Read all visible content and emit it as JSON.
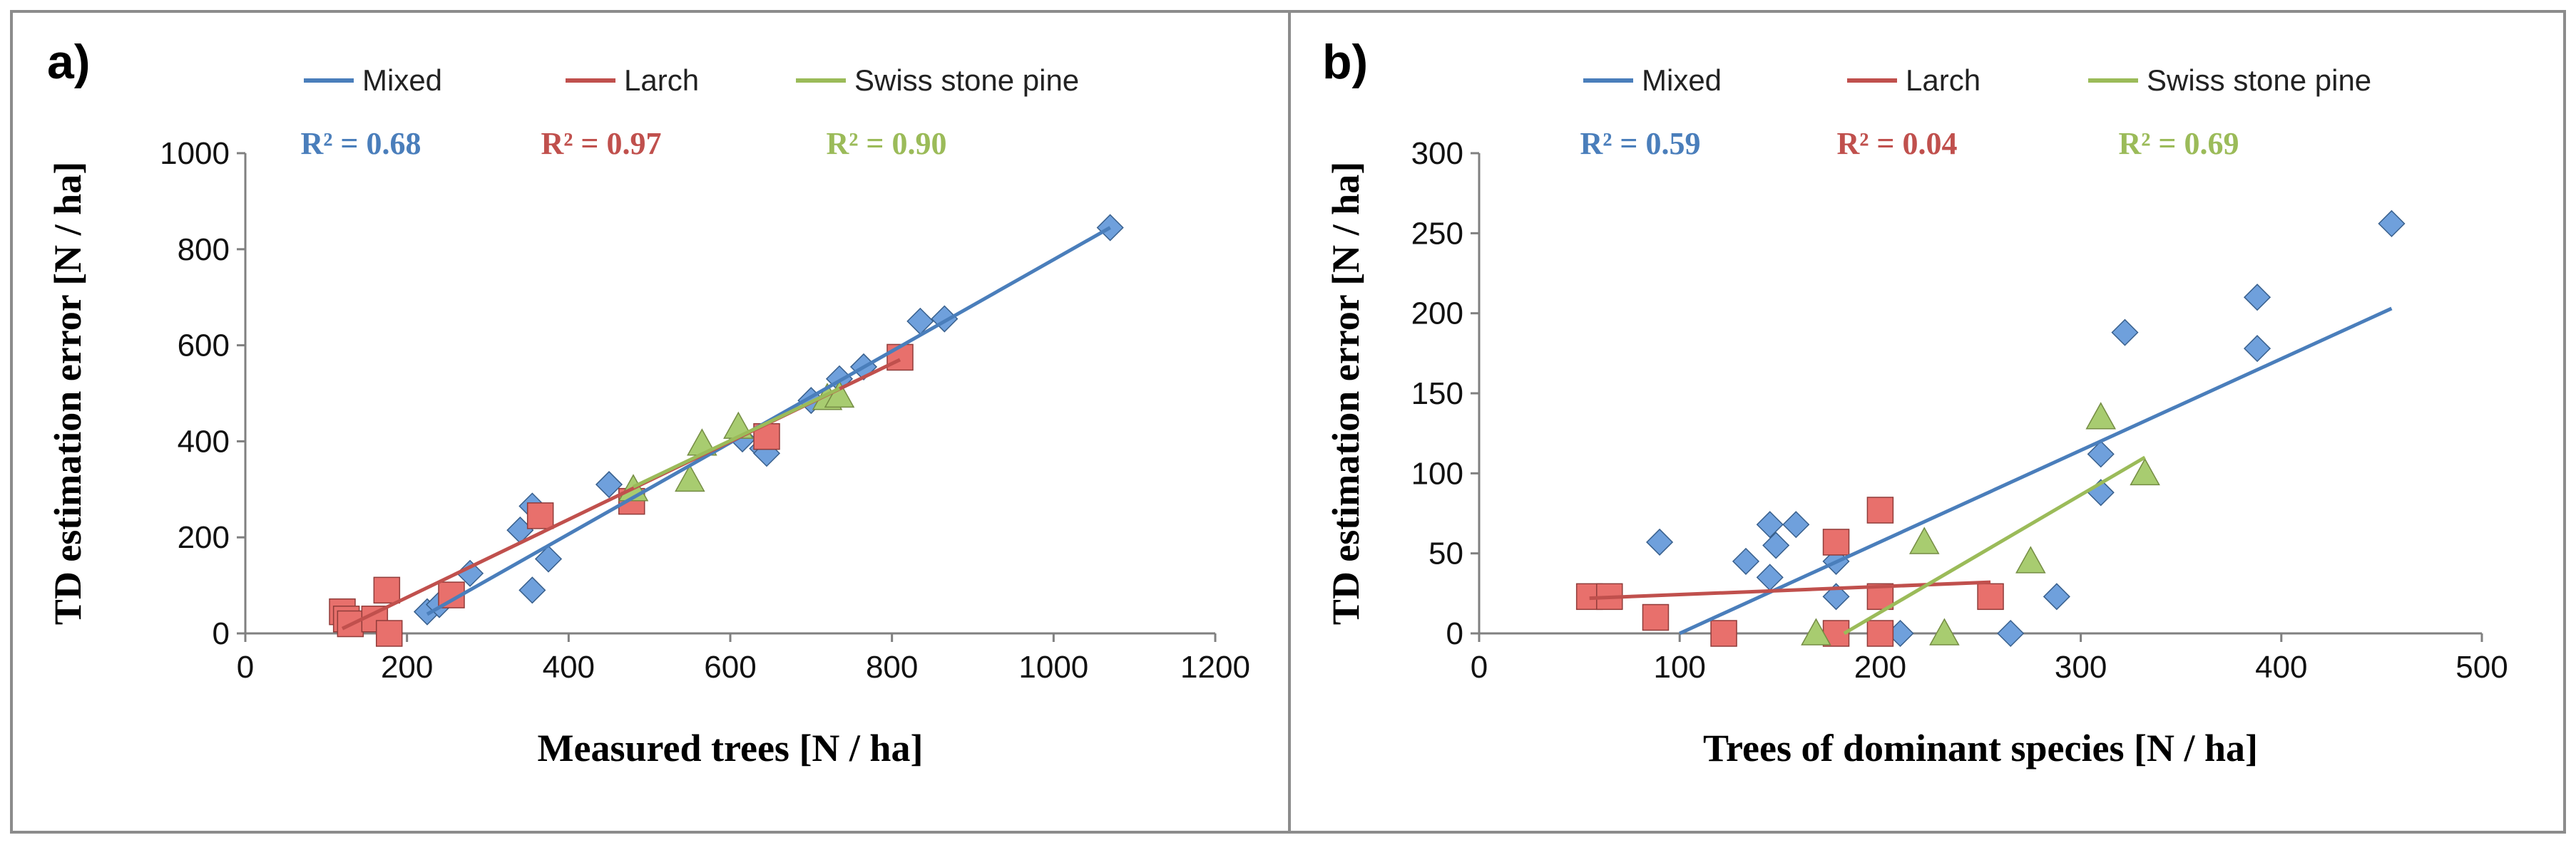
{
  "chart_data": [
    {
      "type": "scatter",
      "panel_label": "a)",
      "xlabel": "Measured trees [N / ha]",
      "ylabel": "TD estimation error [N / ha]",
      "xlim": [
        0,
        1200
      ],
      "ylim": [
        0,
        1000
      ],
      "xticks": [
        "0",
        "200",
        "400",
        "600",
        "800",
        "1000",
        "1200"
      ],
      "yticks": [
        "0",
        "200",
        "400",
        "600",
        "800",
        "1000"
      ],
      "grid": false,
      "legend_position": "top",
      "series": [
        {
          "name": "Mixed",
          "color": "#4A7EBB",
          "marker": "diamond",
          "r2_label": "R² = 0.68",
          "points": [
            [
              225,
              45
            ],
            [
              240,
              60
            ],
            [
              278,
              125
            ],
            [
              340,
              215
            ],
            [
              355,
              265
            ],
            [
              355,
              90
            ],
            [
              375,
              155
            ],
            [
              450,
              310
            ],
            [
              615,
              405
            ],
            [
              640,
              385
            ],
            [
              645,
              375
            ],
            [
              700,
              485
            ],
            [
              735,
              530
            ],
            [
              765,
              555
            ],
            [
              835,
              650
            ],
            [
              865,
              655
            ],
            [
              1070,
              845
            ]
          ],
          "trend": [
            [
              225,
              40
            ],
            [
              1070,
              845
            ]
          ]
        },
        {
          "name": "Larch",
          "color": "#C0504D",
          "marker": "square",
          "r2_label": "R² = 0.97",
          "points": [
            [
              120,
              45
            ],
            [
              125,
              30
            ],
            [
              130,
              20
            ],
            [
              160,
              30
            ],
            [
              175,
              90
            ],
            [
              178,
              0
            ],
            [
              255,
              80
            ],
            [
              365,
              245
            ],
            [
              478,
              275
            ],
            [
              645,
              410
            ],
            [
              810,
              575
            ]
          ],
          "trend": [
            [
              120,
              10
            ],
            [
              810,
              570
            ]
          ]
        },
        {
          "name": "Swiss stone pine",
          "color": "#9BBB59",
          "marker": "triangle",
          "r2_label": "R² = 0.90",
          "points": [
            [
              480,
              300
            ],
            [
              550,
              320
            ],
            [
              565,
              395
            ],
            [
              610,
              430
            ],
            [
              720,
              490
            ],
            [
              735,
              495
            ]
          ],
          "trend": [
            [
              480,
              305
            ],
            [
              735,
              510
            ]
          ]
        }
      ]
    },
    {
      "type": "scatter",
      "panel_label": "b)",
      "xlabel": "Trees of dominant species [N / ha]",
      "ylabel": "TD estimation error [N / ha]",
      "xlim": [
        0,
        500
      ],
      "ylim": [
        0,
        300
      ],
      "xticks": [
        "0",
        "100",
        "200",
        "300",
        "400",
        "500"
      ],
      "yticks": [
        "0",
        "50",
        "100",
        "150",
        "200",
        "250",
        "300"
      ],
      "grid": false,
      "legend_position": "top",
      "series": [
        {
          "name": "Mixed",
          "color": "#4A7EBB",
          "marker": "diamond",
          "r2_label": "R² = 0.59",
          "points": [
            [
              90,
              57
            ],
            [
              133,
              45
            ],
            [
              145,
              68
            ],
            [
              145,
              35
            ],
            [
              148,
              55
            ],
            [
              158,
              68
            ],
            [
              178,
              23
            ],
            [
              178,
              45
            ],
            [
              210,
              0
            ],
            [
              265,
              0
            ],
            [
              288,
              23
            ],
            [
              310,
              112
            ],
            [
              310,
              88
            ],
            [
              322,
              188
            ],
            [
              388,
              210
            ],
            [
              388,
              178
            ],
            [
              455,
              256
            ]
          ],
          "trend": [
            [
              100,
              0
            ],
            [
              455,
              203
            ]
          ]
        },
        {
          "name": "Larch",
          "color": "#C0504D",
          "marker": "square",
          "r2_label": "R² = 0.04",
          "points": [
            [
              55,
              23
            ],
            [
              65,
              23
            ],
            [
              88,
              10
            ],
            [
              122,
              0
            ],
            [
              178,
              57
            ],
            [
              178,
              0
            ],
            [
              200,
              77
            ],
            [
              200,
              23
            ],
            [
              200,
              0
            ],
            [
              255,
              23
            ]
          ],
          "trend": [
            [
              55,
              22
            ],
            [
              255,
              32
            ]
          ]
        },
        {
          "name": "Swiss stone pine",
          "color": "#9BBB59",
          "marker": "triangle",
          "r2_label": "R² = 0.69",
          "points": [
            [
              168,
              0
            ],
            [
              222,
              57
            ],
            [
              232,
              0
            ],
            [
              275,
              45
            ],
            [
              310,
              135
            ],
            [
              332,
              100
            ]
          ],
          "trend": [
            [
              182,
              0
            ],
            [
              332,
              110
            ]
          ]
        }
      ]
    }
  ]
}
